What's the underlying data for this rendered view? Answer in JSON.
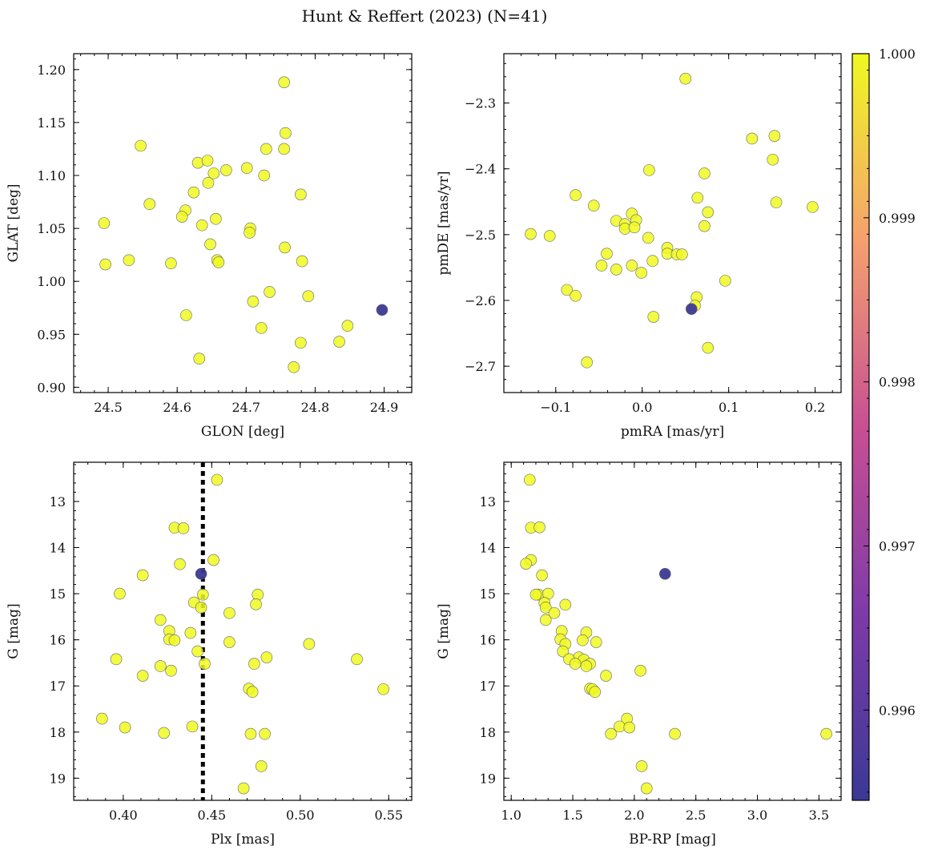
{
  "figure": {
    "title": "Hunt & Reffert (2023) (N=41)"
  },
  "colors": {
    "high": "#f0f921",
    "low": "#3b3994",
    "edge": "#666666"
  },
  "chart_data": [
    {
      "id": "glon-glat",
      "type": "scatter",
      "xlabel": "GLON [deg]",
      "ylabel": "GLAT [deg]",
      "xlim": [
        24.45,
        24.94
      ],
      "ylim": [
        0.895,
        1.215
      ],
      "y_inverted": false,
      "xticks": [
        24.5,
        24.6,
        24.7,
        24.8,
        24.9
      ],
      "xtick_labels": [
        "24.5",
        "24.6",
        "24.7",
        "24.8",
        "24.9"
      ],
      "yticks": [
        0.9,
        0.95,
        1.0,
        1.05,
        1.1,
        1.15,
        1.2
      ],
      "ytick_labels": [
        "0.90",
        "0.95",
        "1.00",
        "1.05",
        "1.10",
        "1.15",
        "1.20"
      ],
      "points": [
        {
          "x": 24.755,
          "y": 1.188,
          "p": 1
        },
        {
          "x": 24.757,
          "y": 1.14,
          "p": 1
        },
        {
          "x": 24.547,
          "y": 1.128,
          "p": 1
        },
        {
          "x": 24.729,
          "y": 1.125,
          "p": 1
        },
        {
          "x": 24.755,
          "y": 1.125,
          "p": 1
        },
        {
          "x": 24.63,
          "y": 1.112,
          "p": 1
        },
        {
          "x": 24.644,
          "y": 1.114,
          "p": 1
        },
        {
          "x": 24.671,
          "y": 1.105,
          "p": 1
        },
        {
          "x": 24.701,
          "y": 1.107,
          "p": 1
        },
        {
          "x": 24.653,
          "y": 1.102,
          "p": 1
        },
        {
          "x": 24.726,
          "y": 1.1,
          "p": 1
        },
        {
          "x": 24.645,
          "y": 1.093,
          "p": 1
        },
        {
          "x": 24.624,
          "y": 1.084,
          "p": 1
        },
        {
          "x": 24.779,
          "y": 1.082,
          "p": 1
        },
        {
          "x": 24.56,
          "y": 1.073,
          "p": 1
        },
        {
          "x": 24.612,
          "y": 1.067,
          "p": 1
        },
        {
          "x": 24.607,
          "y": 1.061,
          "p": 1
        },
        {
          "x": 24.656,
          "y": 1.059,
          "p": 1
        },
        {
          "x": 24.494,
          "y": 1.055,
          "p": 1
        },
        {
          "x": 24.636,
          "y": 1.053,
          "p": 1
        },
        {
          "x": 24.706,
          "y": 1.05,
          "p": 1
        },
        {
          "x": 24.705,
          "y": 1.046,
          "p": 1
        },
        {
          "x": 24.648,
          "y": 1.035,
          "p": 1
        },
        {
          "x": 24.756,
          "y": 1.032,
          "p": 1
        },
        {
          "x": 24.53,
          "y": 1.02,
          "p": 1
        },
        {
          "x": 24.658,
          "y": 1.02,
          "p": 1
        },
        {
          "x": 24.66,
          "y": 1.018,
          "p": 1
        },
        {
          "x": 24.781,
          "y": 1.019,
          "p": 1
        },
        {
          "x": 24.591,
          "y": 1.017,
          "p": 1
        },
        {
          "x": 24.496,
          "y": 1.016,
          "p": 1
        },
        {
          "x": 24.734,
          "y": 0.99,
          "p": 1
        },
        {
          "x": 24.79,
          "y": 0.986,
          "p": 1
        },
        {
          "x": 24.71,
          "y": 0.981,
          "p": 1
        },
        {
          "x": 24.613,
          "y": 0.968,
          "p": 1
        },
        {
          "x": 24.847,
          "y": 0.958,
          "p": 1
        },
        {
          "x": 24.722,
          "y": 0.956,
          "p": 1
        },
        {
          "x": 24.779,
          "y": 0.942,
          "p": 1
        },
        {
          "x": 24.835,
          "y": 0.943,
          "p": 1
        },
        {
          "x": 24.632,
          "y": 0.927,
          "p": 1
        },
        {
          "x": 24.769,
          "y": 0.919,
          "p": 1
        },
        {
          "x": 24.897,
          "y": 0.973,
          "p": 0.9955
        }
      ]
    },
    {
      "id": "pm",
      "type": "scatter",
      "xlabel": "pmRA [mas/yr]",
      "ylabel": "pmDE [mas/yr]",
      "xlim": [
        -0.16,
        0.23
      ],
      "ylim": [
        -2.74,
        -2.225
      ],
      "y_inverted": false,
      "xticks": [
        -0.1,
        0.0,
        0.1,
        0.2
      ],
      "xtick_labels": [
        "−0.1",
        "0.0",
        "0.1",
        "0.2"
      ],
      "yticks": [
        -2.7,
        -2.6,
        -2.5,
        -2.4,
        -2.3
      ],
      "ytick_labels": [
        "−2.7",
        "−2.6",
        "−2.5",
        "−2.4",
        "−2.3"
      ],
      "points": [
        {
          "x": 0.05,
          "y": -2.263,
          "p": 1
        },
        {
          "x": 0.127,
          "y": -2.354,
          "p": 1
        },
        {
          "x": 0.153,
          "y": -2.35,
          "p": 1
        },
        {
          "x": 0.151,
          "y": -2.386,
          "p": 1
        },
        {
          "x": 0.008,
          "y": -2.402,
          "p": 1
        },
        {
          "x": 0.072,
          "y": -2.407,
          "p": 1
        },
        {
          "x": -0.077,
          "y": -2.44,
          "p": 1
        },
        {
          "x": 0.064,
          "y": -2.444,
          "p": 1
        },
        {
          "x": 0.155,
          "y": -2.451,
          "p": 1
        },
        {
          "x": 0.197,
          "y": -2.458,
          "p": 1
        },
        {
          "x": -0.056,
          "y": -2.456,
          "p": 1
        },
        {
          "x": 0.076,
          "y": -2.466,
          "p": 1
        },
        {
          "x": -0.012,
          "y": -2.468,
          "p": 1
        },
        {
          "x": -0.03,
          "y": -2.479,
          "p": 1
        },
        {
          "x": -0.007,
          "y": -2.478,
          "p": 1
        },
        {
          "x": -0.02,
          "y": -2.484,
          "p": 1
        },
        {
          "x": 0.072,
          "y": -2.487,
          "p": 1
        },
        {
          "x": -0.02,
          "y": -2.491,
          "p": 1
        },
        {
          "x": -0.009,
          "y": -2.489,
          "p": 1
        },
        {
          "x": -0.129,
          "y": -2.499,
          "p": 1
        },
        {
          "x": -0.107,
          "y": -2.502,
          "p": 1
        },
        {
          "x": 0.007,
          "y": -2.505,
          "p": 1
        },
        {
          "x": 0.029,
          "y": -2.52,
          "p": 1
        },
        {
          "x": 0.029,
          "y": -2.529,
          "p": 1
        },
        {
          "x": -0.041,
          "y": -2.529,
          "p": 1
        },
        {
          "x": 0.04,
          "y": -2.53,
          "p": 1
        },
        {
          "x": 0.046,
          "y": -2.53,
          "p": 1
        },
        {
          "x": 0.012,
          "y": -2.54,
          "p": 1
        },
        {
          "x": -0.012,
          "y": -2.547,
          "p": 1
        },
        {
          "x": -0.047,
          "y": -2.547,
          "p": 1
        },
        {
          "x": -0.03,
          "y": -2.553,
          "p": 1
        },
        {
          "x": -0.001,
          "y": -2.558,
          "p": 1
        },
        {
          "x": 0.096,
          "y": -2.57,
          "p": 1
        },
        {
          "x": -0.087,
          "y": -2.584,
          "p": 1
        },
        {
          "x": -0.077,
          "y": -2.593,
          "p": 1
        },
        {
          "x": 0.063,
          "y": -2.595,
          "p": 1
        },
        {
          "x": 0.061,
          "y": -2.608,
          "p": 1
        },
        {
          "x": 0.013,
          "y": -2.625,
          "p": 1
        },
        {
          "x": 0.076,
          "y": -2.672,
          "p": 1
        },
        {
          "x": -0.064,
          "y": -2.694,
          "p": 1
        },
        {
          "x": 0.057,
          "y": -2.613,
          "p": 0.9955
        }
      ]
    },
    {
      "id": "plx-g",
      "type": "scatter",
      "xlabel": "Plx [mas]",
      "ylabel": "G [mag]",
      "xlim": [
        0.372,
        0.563
      ],
      "ylim": [
        12.15,
        19.48
      ],
      "y_inverted": true,
      "xticks": [
        0.4,
        0.45,
        0.5,
        0.55
      ],
      "xtick_labels": [
        "0.40",
        "0.45",
        "0.50",
        "0.55"
      ],
      "yticks": [
        13,
        14,
        15,
        16,
        17,
        18,
        19
      ],
      "ytick_labels": [
        "13",
        "14",
        "15",
        "16",
        "17",
        "18",
        "19"
      ],
      "vline": {
        "x": 0.445,
        "style": "dotted"
      },
      "points": [
        {
          "x": 0.453,
          "y": 12.53,
          "p": 1
        },
        {
          "x": 0.429,
          "y": 13.57,
          "p": 1
        },
        {
          "x": 0.434,
          "y": 13.58,
          "p": 1
        },
        {
          "x": 0.451,
          "y": 14.27,
          "p": 1
        },
        {
          "x": 0.432,
          "y": 14.36,
          "p": 1
        },
        {
          "x": 0.411,
          "y": 14.6,
          "p": 1
        },
        {
          "x": 0.398,
          "y": 15.0,
          "p": 1
        },
        {
          "x": 0.445,
          "y": 15.02,
          "p": 1
        },
        {
          "x": 0.476,
          "y": 15.02,
          "p": 1
        },
        {
          "x": 0.44,
          "y": 15.19,
          "p": 1
        },
        {
          "x": 0.475,
          "y": 15.23,
          "p": 1
        },
        {
          "x": 0.444,
          "y": 15.3,
          "p": 1
        },
        {
          "x": 0.46,
          "y": 15.42,
          "p": 1
        },
        {
          "x": 0.421,
          "y": 15.57,
          "p": 1
        },
        {
          "x": 0.426,
          "y": 15.81,
          "p": 1
        },
        {
          "x": 0.438,
          "y": 15.85,
          "p": 1
        },
        {
          "x": 0.426,
          "y": 15.99,
          "p": 1
        },
        {
          "x": 0.429,
          "y": 16.01,
          "p": 1
        },
        {
          "x": 0.46,
          "y": 16.05,
          "p": 1
        },
        {
          "x": 0.505,
          "y": 16.09,
          "p": 1
        },
        {
          "x": 0.442,
          "y": 16.25,
          "p": 1
        },
        {
          "x": 0.481,
          "y": 16.38,
          "p": 1
        },
        {
          "x": 0.532,
          "y": 16.42,
          "p": 1
        },
        {
          "x": 0.396,
          "y": 16.42,
          "p": 1
        },
        {
          "x": 0.446,
          "y": 16.52,
          "p": 1
        },
        {
          "x": 0.474,
          "y": 16.52,
          "p": 1
        },
        {
          "x": 0.421,
          "y": 16.57,
          "p": 1
        },
        {
          "x": 0.427,
          "y": 16.67,
          "p": 1
        },
        {
          "x": 0.411,
          "y": 16.78,
          "p": 1
        },
        {
          "x": 0.471,
          "y": 17.06,
          "p": 1
        },
        {
          "x": 0.547,
          "y": 17.07,
          "p": 1
        },
        {
          "x": 0.473,
          "y": 17.13,
          "p": 1
        },
        {
          "x": 0.388,
          "y": 17.71,
          "p": 1
        },
        {
          "x": 0.439,
          "y": 17.88,
          "p": 1
        },
        {
          "x": 0.401,
          "y": 17.9,
          "p": 1
        },
        {
          "x": 0.423,
          "y": 18.02,
          "p": 1
        },
        {
          "x": 0.472,
          "y": 18.04,
          "p": 1
        },
        {
          "x": 0.48,
          "y": 18.04,
          "p": 1
        },
        {
          "x": 0.478,
          "y": 18.74,
          "p": 1
        },
        {
          "x": 0.468,
          "y": 19.22,
          "p": 1
        },
        {
          "x": 0.444,
          "y": 14.57,
          "p": 0.9955
        }
      ]
    },
    {
      "id": "cmd",
      "type": "scatter",
      "xlabel": "BP-RP [mag]",
      "ylabel": "G [mag]",
      "xlim": [
        0.94,
        3.68
      ],
      "ylim": [
        12.15,
        19.48
      ],
      "y_inverted": true,
      "xticks": [
        1.0,
        1.5,
        2.0,
        2.5,
        3.0,
        3.5
      ],
      "xtick_labels": [
        "1.0",
        "1.5",
        "2.0",
        "2.5",
        "3.0",
        "3.5"
      ],
      "yticks": [
        13,
        14,
        15,
        16,
        17,
        18,
        19
      ],
      "ytick_labels": [
        "13",
        "14",
        "15",
        "16",
        "17",
        "18",
        "19"
      ],
      "points": [
        {
          "x": 1.15,
          "y": 12.53,
          "p": 1
        },
        {
          "x": 1.16,
          "y": 13.57,
          "p": 1
        },
        {
          "x": 1.23,
          "y": 13.56,
          "p": 1
        },
        {
          "x": 1.16,
          "y": 14.27,
          "p": 1
        },
        {
          "x": 1.12,
          "y": 14.35,
          "p": 1
        },
        {
          "x": 1.25,
          "y": 14.6,
          "p": 1
        },
        {
          "x": 1.22,
          "y": 15.02,
          "p": 1
        },
        {
          "x": 1.2,
          "y": 15.02,
          "p": 1
        },
        {
          "x": 1.3,
          "y": 15.0,
          "p": 1
        },
        {
          "x": 1.27,
          "y": 15.2,
          "p": 1
        },
        {
          "x": 1.44,
          "y": 15.24,
          "p": 1
        },
        {
          "x": 1.28,
          "y": 15.3,
          "p": 1
        },
        {
          "x": 1.35,
          "y": 15.42,
          "p": 1
        },
        {
          "x": 1.28,
          "y": 15.57,
          "p": 1
        },
        {
          "x": 1.41,
          "y": 15.81,
          "p": 1
        },
        {
          "x": 1.61,
          "y": 15.84,
          "p": 1
        },
        {
          "x": 1.4,
          "y": 15.99,
          "p": 1
        },
        {
          "x": 1.58,
          "y": 16.01,
          "p": 1
        },
        {
          "x": 1.69,
          "y": 16.05,
          "p": 1
        },
        {
          "x": 1.44,
          "y": 16.09,
          "p": 1
        },
        {
          "x": 1.42,
          "y": 16.25,
          "p": 1
        },
        {
          "x": 1.55,
          "y": 16.38,
          "p": 1
        },
        {
          "x": 1.47,
          "y": 16.42,
          "p": 1
        },
        {
          "x": 1.59,
          "y": 16.43,
          "p": 1
        },
        {
          "x": 1.52,
          "y": 16.52,
          "p": 1
        },
        {
          "x": 1.64,
          "y": 16.52,
          "p": 1
        },
        {
          "x": 1.61,
          "y": 16.57,
          "p": 1
        },
        {
          "x": 2.05,
          "y": 16.67,
          "p": 1
        },
        {
          "x": 1.77,
          "y": 16.78,
          "p": 1
        },
        {
          "x": 1.64,
          "y": 17.06,
          "p": 1
        },
        {
          "x": 1.66,
          "y": 17.07,
          "p": 1
        },
        {
          "x": 1.68,
          "y": 17.13,
          "p": 1
        },
        {
          "x": 1.94,
          "y": 17.71,
          "p": 1
        },
        {
          "x": 1.88,
          "y": 17.88,
          "p": 1
        },
        {
          "x": 1.96,
          "y": 17.9,
          "p": 1
        },
        {
          "x": 1.81,
          "y": 18.04,
          "p": 1
        },
        {
          "x": 2.33,
          "y": 18.04,
          "p": 1
        },
        {
          "x": 3.56,
          "y": 18.04,
          "p": 1
        },
        {
          "x": 2.06,
          "y": 18.74,
          "p": 1
        },
        {
          "x": 2.1,
          "y": 19.22,
          "p": 1
        },
        {
          "x": 2.25,
          "y": 14.57,
          "p": 0.9955
        }
      ]
    }
  ],
  "colorbar": {
    "range": [
      0.99545,
      1.0
    ],
    "ticks": [
      0.996,
      0.997,
      0.998,
      0.999,
      1.0
    ],
    "tick_labels": [
      "0.996",
      "0.997",
      "0.998",
      "0.999",
      "1.000"
    ]
  }
}
